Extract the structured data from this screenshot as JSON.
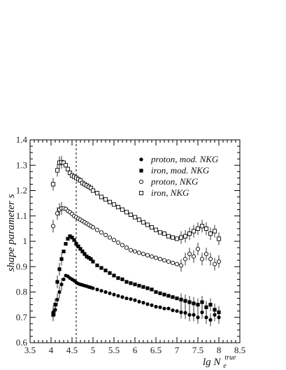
{
  "chart_data": {
    "type": "scatter",
    "xlabel": "lg N",
    "xlabel_sub": "e",
    "xlabel_sup": "true",
    "ylabel": "shape parameter s",
    "xlim": [
      3.5,
      8.5
    ],
    "ylim": [
      0.6,
      1.4
    ],
    "xticks": [
      "3.5",
      "4",
      "4.5",
      "5",
      "5.5",
      "6",
      "6.5",
      "7",
      "7.5",
      "8",
      "8.5"
    ],
    "yticks": [
      "0.6",
      "0.7",
      "0.8",
      "0.9",
      "1",
      "1.1",
      "1.2",
      "1.3",
      "1.4"
    ],
    "vline_x": 4.6,
    "grid": false,
    "legend_position": "top-right",
    "series": [
      {
        "name": "proton, mod. NKG",
        "marker": "filled-circle",
        "x": [
          4.05,
          4.1,
          4.15,
          4.2,
          4.25,
          4.3,
          4.35,
          4.4,
          4.45,
          4.5,
          4.55,
          4.6,
          4.65,
          4.7,
          4.75,
          4.8,
          4.85,
          4.9,
          4.95,
          5.0,
          5.1,
          5.2,
          5.3,
          5.4,
          5.5,
          5.6,
          5.7,
          5.8,
          5.9,
          6.0,
          6.1,
          6.2,
          6.3,
          6.4,
          6.5,
          6.6,
          6.7,
          6.8,
          6.9,
          7.0,
          7.1,
          7.2,
          7.3,
          7.4,
          7.5,
          7.6,
          7.7,
          7.8,
          7.9,
          8.0
        ],
        "y": [
          0.72,
          0.73,
          0.77,
          0.8,
          0.83,
          0.85,
          0.865,
          0.862,
          0.855,
          0.85,
          0.845,
          0.838,
          0.833,
          0.83,
          0.828,
          0.825,
          0.823,
          0.82,
          0.818,
          0.815,
          0.81,
          0.805,
          0.8,
          0.795,
          0.79,
          0.785,
          0.78,
          0.775,
          0.772,
          0.768,
          0.762,
          0.758,
          0.752,
          0.748,
          0.742,
          0.74,
          0.735,
          0.735,
          0.728,
          0.725,
          0.72,
          0.718,
          0.71,
          0.71,
          0.7,
          0.72,
          0.7,
          0.69,
          0.71,
          0.7
        ]
      },
      {
        "name": "iron, mod. NKG",
        "marker": "filled-square",
        "x": [
          4.05,
          4.1,
          4.15,
          4.2,
          4.25,
          4.3,
          4.35,
          4.4,
          4.45,
          4.5,
          4.55,
          4.6,
          4.65,
          4.7,
          4.75,
          4.8,
          4.85,
          4.9,
          4.95,
          5.0,
          5.1,
          5.2,
          5.3,
          5.4,
          5.5,
          5.6,
          5.7,
          5.8,
          5.9,
          6.0,
          6.1,
          6.2,
          6.3,
          6.4,
          6.5,
          6.6,
          6.7,
          6.8,
          6.9,
          7.0,
          7.1,
          7.2,
          7.3,
          7.4,
          7.5,
          7.6,
          7.7,
          7.8,
          7.9,
          8.0
        ],
        "y": [
          0.71,
          0.75,
          0.84,
          0.89,
          0.93,
          0.96,
          0.99,
          1.01,
          1.02,
          1.015,
          1.005,
          0.99,
          0.98,
          0.97,
          0.96,
          0.95,
          0.94,
          0.935,
          0.93,
          0.92,
          0.905,
          0.895,
          0.885,
          0.875,
          0.865,
          0.855,
          0.85,
          0.84,
          0.835,
          0.83,
          0.825,
          0.82,
          0.815,
          0.81,
          0.8,
          0.795,
          0.79,
          0.785,
          0.78,
          0.775,
          0.77,
          0.765,
          0.76,
          0.755,
          0.75,
          0.76,
          0.74,
          0.75,
          0.73,
          0.72
        ]
      },
      {
        "name": "proton, NKG",
        "marker": "open-circle",
        "x": [
          4.05,
          4.15,
          4.2,
          4.25,
          4.3,
          4.35,
          4.4,
          4.45,
          4.5,
          4.55,
          4.6,
          4.65,
          4.7,
          4.75,
          4.8,
          4.85,
          4.9,
          4.95,
          5.0,
          5.1,
          5.2,
          5.3,
          5.4,
          5.5,
          5.6,
          5.7,
          5.8,
          5.9,
          6.0,
          6.1,
          6.2,
          6.3,
          6.4,
          6.5,
          6.6,
          6.7,
          6.8,
          6.9,
          7.0,
          7.1,
          7.2,
          7.3,
          7.4,
          7.5,
          7.6,
          7.7,
          7.8,
          7.9,
          8.0
        ],
        "y": [
          1.06,
          1.11,
          1.125,
          1.13,
          1.13,
          1.128,
          1.12,
          1.115,
          1.108,
          1.1,
          1.095,
          1.09,
          1.085,
          1.08,
          1.075,
          1.07,
          1.065,
          1.06,
          1.055,
          1.045,
          1.035,
          1.025,
          1.015,
          1.005,
          0.995,
          0.985,
          0.975,
          0.965,
          0.96,
          0.955,
          0.95,
          0.945,
          0.94,
          0.935,
          0.93,
          0.925,
          0.92,
          0.915,
          0.91,
          0.905,
          0.93,
          0.95,
          0.94,
          0.97,
          0.93,
          0.95,
          0.93,
          0.91,
          0.92
        ]
      },
      {
        "name": "iron, NKG",
        "marker": "open-square",
        "x": [
          4.05,
          4.15,
          4.2,
          4.25,
          4.3,
          4.35,
          4.4,
          4.45,
          4.5,
          4.55,
          4.6,
          4.65,
          4.7,
          4.75,
          4.8,
          4.85,
          4.9,
          4.95,
          5.0,
          5.1,
          5.2,
          5.3,
          5.4,
          5.5,
          5.6,
          5.7,
          5.8,
          5.9,
          6.0,
          6.1,
          6.2,
          6.3,
          6.4,
          6.5,
          6.6,
          6.7,
          6.8,
          6.9,
          7.0,
          7.1,
          7.2,
          7.3,
          7.4,
          7.5,
          7.6,
          7.7,
          7.8,
          7.9,
          8.0
        ],
        "y": [
          1.225,
          1.28,
          1.31,
          1.312,
          1.31,
          1.3,
          1.285,
          1.27,
          1.26,
          1.255,
          1.25,
          1.245,
          1.24,
          1.23,
          1.225,
          1.22,
          1.215,
          1.21,
          1.2,
          1.19,
          1.175,
          1.165,
          1.155,
          1.145,
          1.135,
          1.125,
          1.115,
          1.105,
          1.095,
          1.085,
          1.075,
          1.065,
          1.055,
          1.045,
          1.035,
          1.03,
          1.02,
          1.015,
          1.01,
          1.015,
          1.02,
          1.03,
          1.04,
          1.05,
          1.06,
          1.05,
          1.03,
          1.04,
          1.01
        ]
      }
    ]
  }
}
